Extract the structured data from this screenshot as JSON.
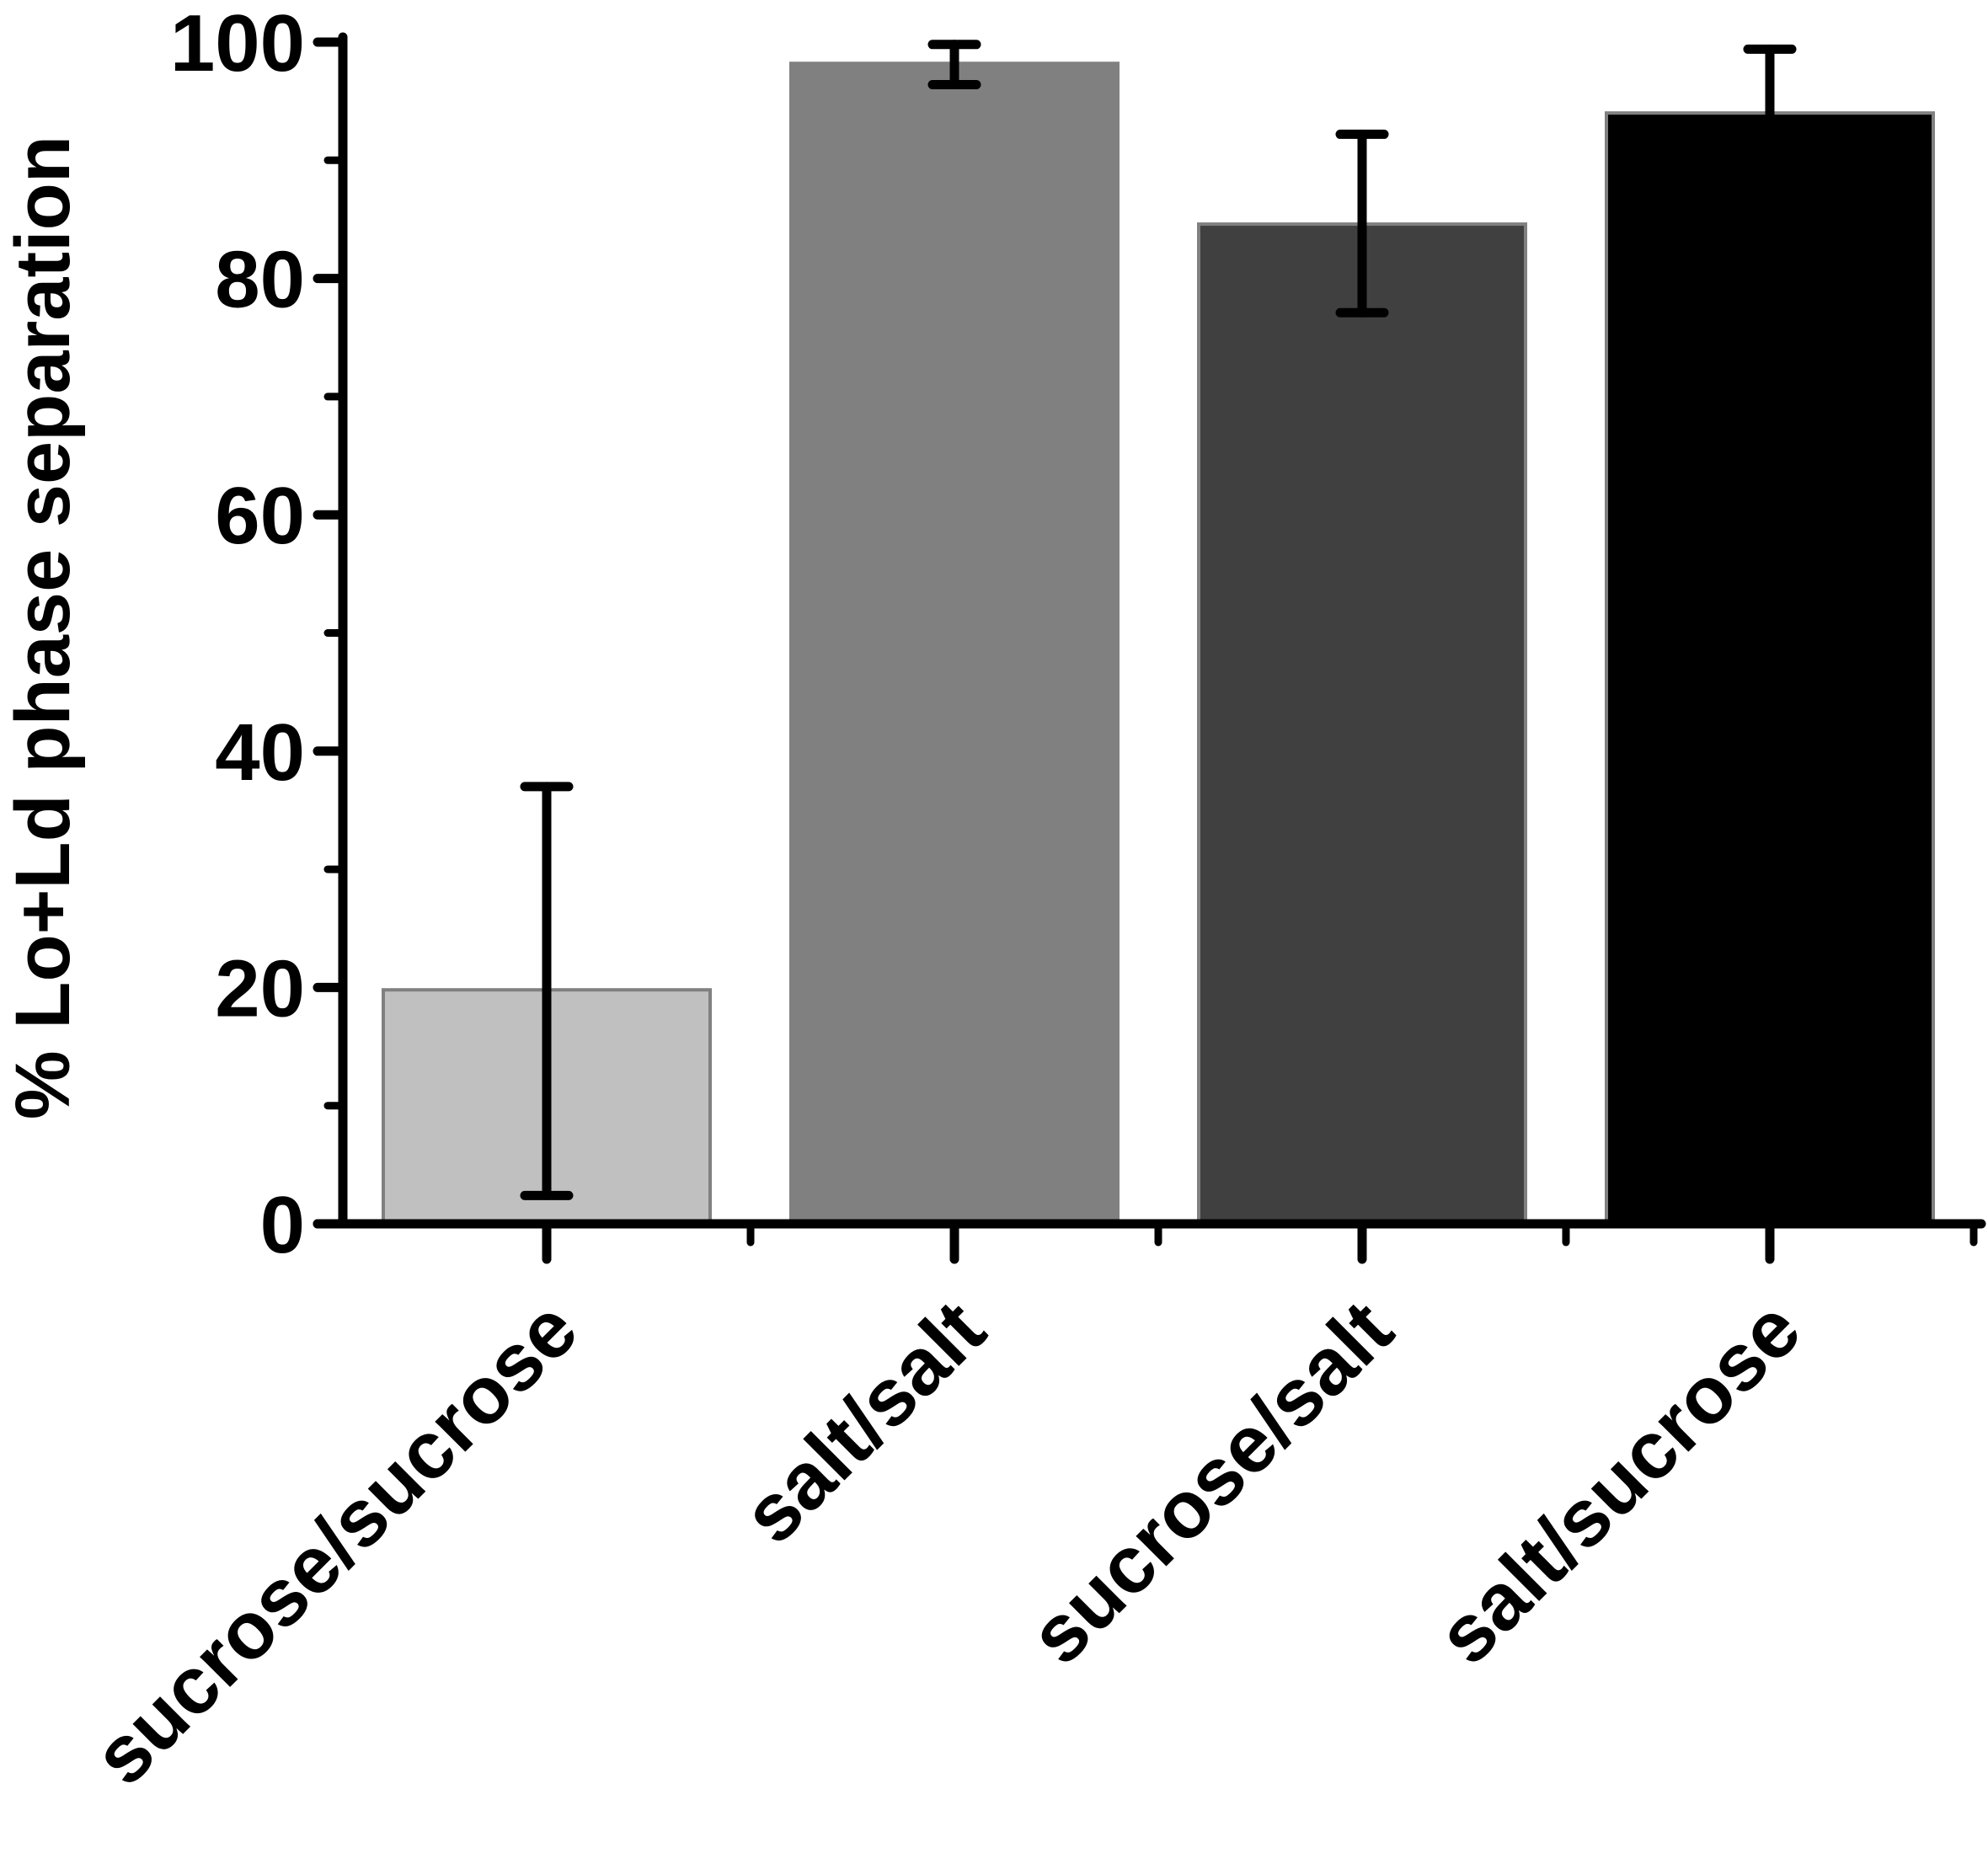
{
  "chart_data": {
    "type": "bar",
    "title": "",
    "xlabel": "",
    "ylabel": "% Lo+Ld phase separation",
    "ylim": [
      0,
      100
    ],
    "yticks": [
      0,
      20,
      40,
      60,
      80,
      100
    ],
    "yminor_ticks": [
      10,
      30,
      50,
      70,
      90
    ],
    "grid": false,
    "categories": [
      "sucrose/sucrose",
      "salt/salt",
      "sucrose/salt",
      "salt/sucrose"
    ],
    "values": [
      19.8,
      98.2,
      84.6,
      94.0
    ],
    "error_low": [
      2.4,
      96.4,
      77.1,
      88.5
    ],
    "error_high": [
      37.0,
      99.8,
      92.2,
      99.4
    ],
    "colors": [
      "#c0c0c0",
      "#808080",
      "#404040",
      "#000000"
    ]
  }
}
